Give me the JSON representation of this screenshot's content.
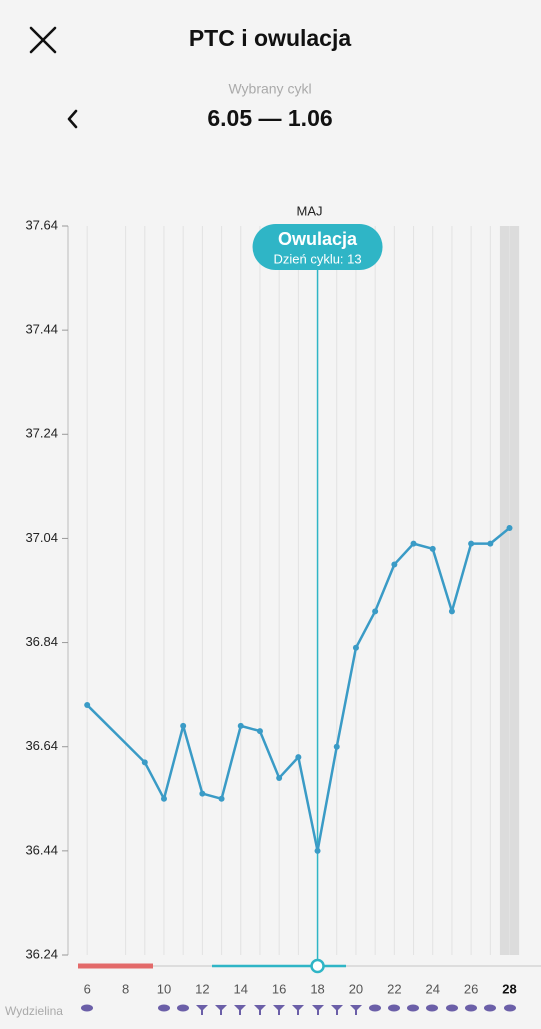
{
  "chart_data": {
    "type": "line",
    "title": "PTC i owulacja",
    "subtitle": "Wybrany cykl",
    "period": "6.05 — 1.06",
    "month_label": "MAJ",
    "annotation": {
      "title": "Owulacja",
      "text": "Dzień cyklu: 13",
      "x": 18
    },
    "row_label": "Wydzielina",
    "x": [
      6,
      9,
      10,
      11,
      12,
      13,
      14,
      15,
      16,
      17,
      18,
      19,
      20,
      21,
      22,
      23,
      24,
      25,
      26,
      27,
      28
    ],
    "values": [
      36.72,
      36.61,
      36.54,
      36.68,
      36.55,
      36.54,
      36.68,
      36.67,
      36.58,
      36.62,
      36.44,
      36.64,
      36.83,
      36.9,
      36.99,
      37.03,
      37.02,
      36.9,
      37.03,
      37.03,
      37.06
    ],
    "color": "#3a9bc6",
    "highlight_x": 28,
    "xlim": [
      5,
      29.64
    ],
    "xticks": [
      6,
      8,
      10,
      12,
      14,
      16,
      18,
      20,
      22,
      24,
      26,
      28
    ],
    "ylim": [
      36.24,
      37.64
    ],
    "yticks": [
      36.24,
      36.44,
      36.64,
      36.84,
      37.04,
      37.24,
      37.44,
      37.64
    ],
    "grid": true
  }
}
